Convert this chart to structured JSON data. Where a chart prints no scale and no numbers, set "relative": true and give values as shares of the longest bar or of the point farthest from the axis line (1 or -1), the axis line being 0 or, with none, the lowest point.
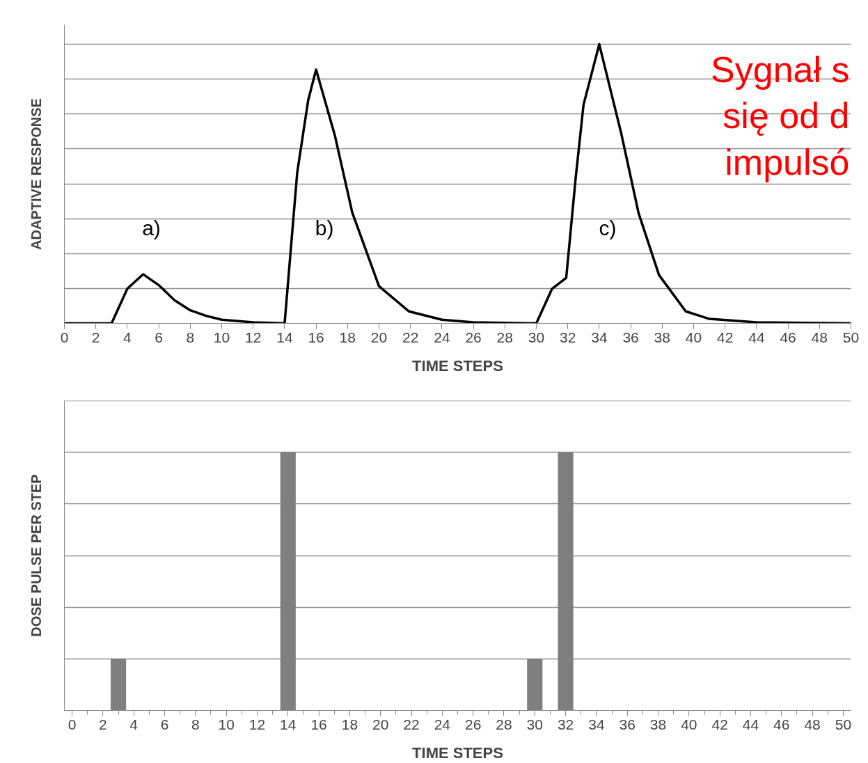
{
  "chart_data": [
    {
      "type": "line",
      "relative": true,
      "xlabel": "TIME STEPS",
      "ylabel": "ADAPTIVE RESPONSE",
      "grid": "y",
      "color": "#000000",
      "x": [
        0,
        3,
        4,
        5,
        6,
        7,
        8,
        9,
        10,
        12,
        14,
        14.8,
        15.5,
        16,
        17.2,
        18.3,
        20,
        21.9,
        24,
        26,
        30,
        31,
        31.9,
        32.5,
        33,
        34,
        35.4,
        36.5,
        37.8,
        39.5,
        41,
        44,
        50
      ],
      "values": [
        0,
        0,
        0.124,
        0.176,
        0.137,
        0.083,
        0.047,
        0.027,
        0.013,
        0.004,
        0,
        0.54,
        0.8,
        0.909,
        0.672,
        0.397,
        0.133,
        0.043,
        0.013,
        0.004,
        0,
        0.124,
        0.163,
        0.52,
        0.783,
        1,
        0.68,
        0.395,
        0.173,
        0.043,
        0.016,
        0.004,
        0
      ],
      "xlim": [
        0,
        50
      ],
      "xticks": [
        0,
        2,
        4,
        6,
        8,
        10,
        12,
        14,
        16,
        18,
        20,
        22,
        24,
        26,
        28,
        30,
        32,
        34,
        36,
        38,
        40,
        42,
        44,
        46,
        48,
        50
      ],
      "annotations": [
        "a)",
        "b)",
        "c)",
        "Sygnał s\nsię od d\nimpulsó"
      ]
    },
    {
      "type": "bar",
      "relative": true,
      "xlabel": "TIME STEPS",
      "ylabel": "DOSE PULSE PER STEP",
      "grid": "y",
      "color": "#7f7f7f",
      "x": [
        3,
        14,
        30,
        32
      ],
      "values": [
        0.2,
        1,
        0.2,
        1
      ],
      "xlim": [
        -0.5,
        50.5
      ],
      "xticks": [
        0,
        2,
        4,
        6,
        8,
        10,
        12,
        14,
        16,
        18,
        20,
        22,
        24,
        26,
        28,
        30,
        32,
        34,
        36,
        38,
        40,
        42,
        44,
        46,
        48,
        50
      ]
    }
  ]
}
